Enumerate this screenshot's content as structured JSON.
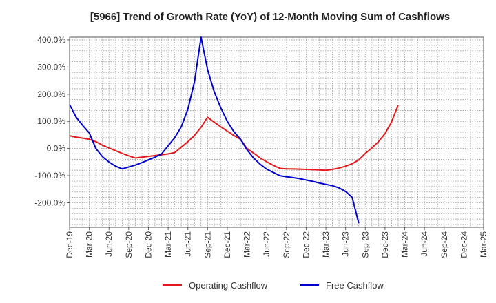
{
  "chart_data": {
    "type": "line",
    "title": "[5966]  Trend of Growth Rate (YoY) of 12-Month Moving Sum of Cashflows",
    "xlabel": "",
    "ylabel": "",
    "ylim": [
      -290,
      410
    ],
    "y_ticks": [
      -200,
      -100,
      0,
      100,
      200,
      300,
      400
    ],
    "y_tick_labels": [
      "-200.0%",
      "-100.0%",
      "0.0%",
      "100.0%",
      "200.0%",
      "300.0%",
      "400.0%"
    ],
    "x_tick_labels": [
      "Dec-19",
      "Mar-20",
      "Jun-20",
      "Sep-20",
      "Dec-20",
      "Mar-21",
      "Jun-21",
      "Sep-21",
      "Dec-21",
      "Mar-22",
      "Jun-22",
      "Sep-22",
      "Dec-22",
      "Mar-23",
      "Jun-23",
      "Sep-23",
      "Dec-23",
      "Mar-24",
      "Jun-24",
      "Sep-24",
      "Dec-24",
      "Mar-25"
    ],
    "x_range_months": [
      0,
      63
    ],
    "grid": true,
    "legend_position": "bottom-center",
    "series": [
      {
        "name": "Operating Cashflow",
        "color": "#e31a1c",
        "x": [
          0,
          1,
          2,
          3,
          4,
          5,
          6,
          7,
          8,
          9,
          10,
          11,
          12,
          13,
          14,
          15,
          16,
          17,
          18,
          19,
          20,
          21,
          22,
          23,
          24,
          25,
          26,
          27,
          28,
          29,
          30,
          31,
          32,
          33,
          34,
          35,
          36,
          37,
          38,
          39,
          40,
          41,
          42,
          43,
          44,
          45,
          46,
          47,
          48,
          49,
          50
        ],
        "values": [
          47,
          42,
          38,
          34,
          25,
          12,
          2,
          -8,
          -18,
          -27,
          -35,
          -32,
          -29,
          -26,
          -23,
          -20,
          -15,
          5,
          25,
          48,
          78,
          115,
          97,
          80,
          64,
          48,
          34,
          0,
          -17,
          -35,
          -49,
          -62,
          -73,
          -75,
          -75,
          -76,
          -77,
          -78,
          -79,
          -80,
          -77,
          -72,
          -65,
          -56,
          -42,
          -18,
          2,
          25,
          55,
          98,
          160
        ]
      },
      {
        "name": "Free Cashflow",
        "color": "#0000cc",
        "x": [
          0,
          1,
          2,
          3,
          4,
          5,
          6,
          7,
          8,
          9,
          10,
          11,
          12,
          13,
          14,
          15,
          16,
          17,
          18,
          19,
          20,
          21,
          22,
          23,
          24,
          25,
          26,
          27,
          28,
          29,
          30,
          31,
          32,
          33,
          34,
          35,
          36,
          37,
          38,
          39,
          40,
          41,
          42,
          43,
          44
        ],
        "values": [
          162,
          115,
          85,
          57,
          0,
          -30,
          -50,
          -65,
          -75,
          -68,
          -61,
          -52,
          -42,
          -32,
          -20,
          10,
          40,
          80,
          145,
          245,
          410,
          290,
          210,
          150,
          100,
          62,
          35,
          -5,
          -35,
          -58,
          -76,
          -88,
          -100,
          -104,
          -107,
          -111,
          -116,
          -121,
          -127,
          -132,
          -137,
          -145,
          -158,
          -180,
          -275
        ]
      }
    ]
  }
}
